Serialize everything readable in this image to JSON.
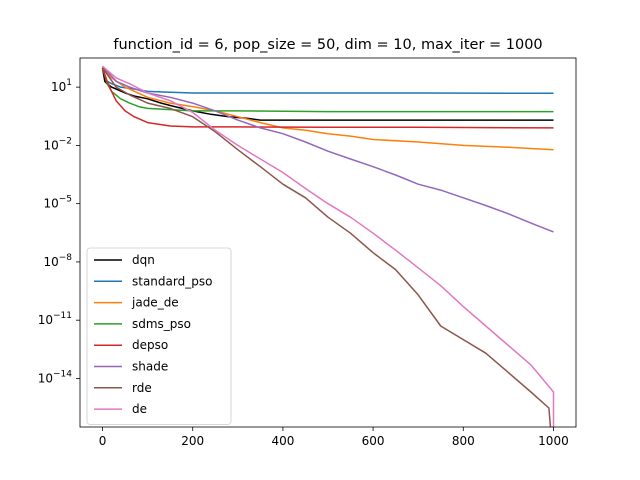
{
  "chart_data": {
    "type": "line",
    "title": "function_id = 6, pop_size = 50, dim = 10, max_iter = 1000",
    "xlabel": "",
    "ylabel": "",
    "xlim": [
      -50,
      1050
    ],
    "yscale": "log",
    "ylim_log10": [
      -16.5,
      2.5
    ],
    "x_ticks": [
      0,
      200,
      400,
      600,
      800,
      1000
    ],
    "y_ticks": [
      1,
      -2,
      -5,
      -8,
      -11,
      -14
    ],
    "y_tick_labels": [
      "10^1",
      "10^-2",
      "10^-5",
      "10^-8",
      "10^-11",
      "10^-14"
    ],
    "grid": false,
    "legend_position": "lower-left",
    "series": [
      {
        "name": "dqn",
        "color": "#000000",
        "x": [
          0,
          5,
          10,
          20,
          30,
          50,
          70,
          100,
          130,
          160,
          200,
          240,
          280,
          320,
          350,
          1000
        ],
        "y": [
          100,
          20,
          15,
          10,
          8,
          5,
          3.5,
          2.5,
          1.5,
          1.0,
          0.6,
          0.4,
          0.3,
          0.25,
          0.2,
          0.2
        ]
      },
      {
        "name": "standard_pso",
        "color": "#1f77b4",
        "x": [
          0,
          5,
          10,
          20,
          40,
          70,
          100,
          150,
          200,
          400,
          700,
          1000
        ],
        "y": [
          100,
          40,
          20,
          15,
          10,
          8,
          6,
          5.5,
          5,
          5,
          5,
          4.8
        ]
      },
      {
        "name": "jade_de",
        "color": "#ff7f0e",
        "x": [
          0,
          20,
          50,
          100,
          150,
          200,
          250,
          300,
          350,
          400,
          450,
          500,
          550,
          600,
          700,
          800,
          900,
          1000
        ],
        "y": [
          100,
          30,
          10,
          3,
          1.5,
          1,
          0.6,
          0.3,
          0.15,
          0.08,
          0.06,
          0.04,
          0.03,
          0.02,
          0.015,
          0.01,
          0.008,
          0.006
        ]
      },
      {
        "name": "sdms_pso",
        "color": "#2ca02c",
        "x": [
          0,
          10,
          20,
          40,
          60,
          80,
          100,
          150,
          200,
          300,
          500,
          700,
          1000
        ],
        "y": [
          100,
          15,
          6,
          2.5,
          1.5,
          1.0,
          0.8,
          0.7,
          0.6,
          0.6,
          0.55,
          0.55,
          0.55
        ]
      },
      {
        "name": "depso",
        "color": "#d62728",
        "x": [
          0,
          10,
          20,
          30,
          50,
          70,
          100,
          150,
          200,
          300,
          500,
          700,
          1000
        ],
        "y": [
          100,
          20,
          6,
          2,
          0.6,
          0.3,
          0.15,
          0.1,
          0.09,
          0.09,
          0.085,
          0.085,
          0.08
        ]
      },
      {
        "name": "shade",
        "color": "#9467bd",
        "x": [
          0,
          30,
          60,
          100,
          150,
          200,
          250,
          300,
          350,
          400,
          450,
          500,
          550,
          600,
          650,
          700,
          750,
          800,
          850,
          900,
          950,
          1000
        ],
        "y": [
          120,
          20,
          10,
          5,
          3,
          1.5,
          0.6,
          0.2,
          0.08,
          0.04,
          0.015,
          0.005,
          0.002,
          0.0008,
          0.0003,
          0.0001,
          5e-05,
          2e-05,
          8e-06,
          3e-06,
          1e-06,
          3.5e-07
        ]
      },
      {
        "name": "rde",
        "color": "#8c564b",
        "x": [
          0,
          30,
          60,
          100,
          150,
          200,
          250,
          300,
          350,
          400,
          450,
          500,
          550,
          600,
          650,
          700,
          750,
          800,
          850,
          900,
          950,
          990,
          995,
          1000
        ],
        "y": [
          100,
          10,
          4,
          1.5,
          0.8,
          0.3,
          0.05,
          0.006,
          0.0008,
          0.0001,
          2e-05,
          2e-06,
          3e-07,
          3e-08,
          4e-09,
          2e-10,
          5e-12,
          1e-12,
          2e-13,
          2e-14,
          2e-15,
          3e-16,
          1e-17,
          1e-17
        ]
      },
      {
        "name": "de",
        "color": "#e377c2",
        "x": [
          0,
          30,
          60,
          100,
          150,
          200,
          250,
          300,
          350,
          400,
          450,
          500,
          550,
          600,
          650,
          700,
          750,
          800,
          850,
          900,
          950,
          1000,
          1000
        ],
        "y": [
          120,
          30,
          15,
          5,
          2,
          0.5,
          0.06,
          0.01,
          0.002,
          0.0004,
          6e-05,
          1e-05,
          2e-06,
          3e-07,
          4e-08,
          5e-09,
          6e-10,
          5e-11,
          5e-12,
          5e-13,
          5e-14,
          2e-15,
          1e-17
        ]
      }
    ]
  }
}
